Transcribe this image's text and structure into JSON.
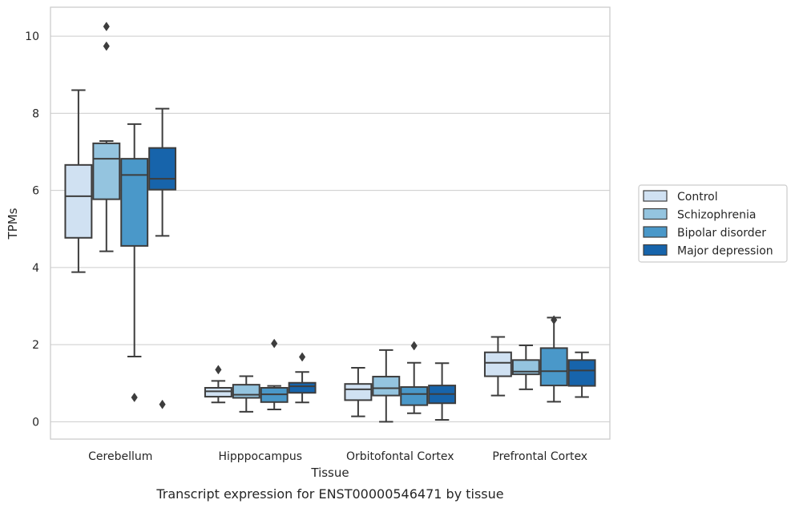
{
  "caption": "Transcript expression for ENST00000546471 by tissue",
  "chart_data": {
    "type": "box",
    "xlabel": "Tissue",
    "ylabel": "TPMs",
    "ylim": [
      -0.45,
      10.75
    ],
    "yticks": [
      0,
      2,
      4,
      6,
      8,
      10
    ],
    "grid": "horizontal",
    "legend_position": "right",
    "categories": [
      "Cerebellum",
      "Hipppocampus",
      "Orbitofontal Cortex",
      "Prefrontal Cortex"
    ],
    "series": [
      {
        "name": "Control",
        "color": "#d0e1f2",
        "boxes": [
          {
            "whislo": 3.88,
            "q1": 4.77,
            "med": 5.85,
            "q3": 6.66,
            "whishi": 8.6,
            "fliers": []
          },
          {
            "whislo": 0.5,
            "q1": 0.65,
            "med": 0.79,
            "q3": 0.88,
            "whishi": 1.06,
            "fliers": [
              1.35
            ]
          },
          {
            "whislo": 0.14,
            "q1": 0.56,
            "med": 0.84,
            "q3": 0.98,
            "whishi": 1.4,
            "fliers": []
          },
          {
            "whislo": 0.68,
            "q1": 1.18,
            "med": 1.53,
            "q3": 1.8,
            "whishi": 2.2,
            "fliers": []
          }
        ]
      },
      {
        "name": "Schizophrenia",
        "color": "#94c4df",
        "boxes": [
          {
            "whislo": 4.42,
            "q1": 5.77,
            "med": 6.82,
            "q3": 7.22,
            "whishi": 7.28,
            "fliers": [
              9.74,
              10.25
            ]
          },
          {
            "whislo": 0.26,
            "q1": 0.62,
            "med": 0.7,
            "q3": 0.96,
            "whishi": 1.18,
            "fliers": []
          },
          {
            "whislo": 0.0,
            "q1": 0.68,
            "med": 0.87,
            "q3": 1.17,
            "whishi": 1.86,
            "fliers": []
          },
          {
            "whislo": 0.84,
            "q1": 1.23,
            "med": 1.3,
            "q3": 1.6,
            "whishi": 1.98,
            "fliers": []
          }
        ]
      },
      {
        "name": "Bipolar disorder",
        "color": "#4a98c9",
        "boxes": [
          {
            "whislo": 1.69,
            "q1": 4.56,
            "med": 6.4,
            "q3": 6.82,
            "whishi": 7.72,
            "fliers": [
              0.63
            ]
          },
          {
            "whislo": 0.32,
            "q1": 0.51,
            "med": 0.71,
            "q3": 0.88,
            "whishi": 0.93,
            "fliers": [
              2.03
            ]
          },
          {
            "whislo": 0.22,
            "q1": 0.43,
            "med": 0.72,
            "q3": 0.9,
            "whishi": 1.53,
            "fliers": [
              1.97
            ]
          },
          {
            "whislo": 0.52,
            "q1": 0.94,
            "med": 1.31,
            "q3": 1.91,
            "whishi": 2.7,
            "fliers": [
              2.64
            ]
          }
        ]
      },
      {
        "name": "Major depression",
        "color": "#1764ab",
        "boxes": [
          {
            "whislo": 4.82,
            "q1": 6.02,
            "med": 6.3,
            "q3": 7.1,
            "whishi": 8.12,
            "fliers": [
              0.45
            ]
          },
          {
            "whislo": 0.5,
            "q1": 0.75,
            "med": 0.92,
            "q3": 1.01,
            "whishi": 1.29,
            "fliers": [
              1.68
            ]
          },
          {
            "whislo": 0.05,
            "q1": 0.48,
            "med": 0.72,
            "q3": 0.94,
            "whishi": 1.52,
            "fliers": []
          },
          {
            "whislo": 0.64,
            "q1": 0.93,
            "med": 1.33,
            "q3": 1.6,
            "whishi": 1.8,
            "fliers": []
          }
        ]
      }
    ]
  }
}
